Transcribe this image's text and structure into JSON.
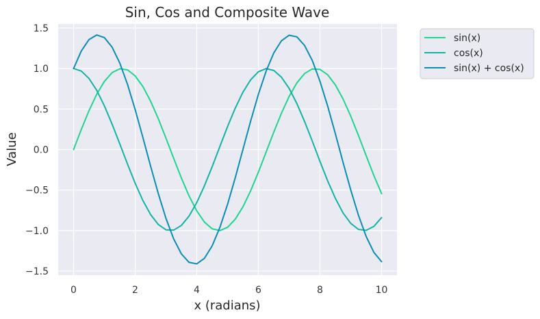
{
  "chart_data": {
    "type": "line",
    "title": "Sin, Cos and Composite Wave",
    "xlabel": "x (radians)",
    "ylabel": "Value",
    "xlim": [
      -0.5,
      10.5
    ],
    "ylim": [
      -1.55,
      1.55
    ],
    "xticks": [
      0,
      2,
      4,
      6,
      8,
      10
    ],
    "yticks": [
      1.5,
      1.0,
      0.5,
      0.0,
      -0.5,
      -1.0,
      -1.5
    ],
    "xtick_labels": [
      "0",
      "2",
      "4",
      "6",
      "8",
      "10"
    ],
    "ytick_labels": [
      "1.5",
      "1.0",
      "0.5",
      "0.0",
      "−0.5",
      "−1.0",
      "−1.5"
    ],
    "grid": true,
    "legend_position": "outside-top-right",
    "x": [
      0.0,
      0.25,
      0.5,
      0.75,
      1.0,
      1.25,
      1.5,
      1.75,
      2.0,
      2.25,
      2.5,
      2.75,
      3.0,
      3.25,
      3.5,
      3.75,
      4.0,
      4.25,
      4.5,
      4.75,
      5.0,
      5.25,
      5.5,
      5.75,
      6.0,
      6.25,
      6.5,
      6.75,
      7.0,
      7.25,
      7.5,
      7.75,
      8.0,
      8.25,
      8.5,
      8.75,
      9.0,
      9.25,
      9.5,
      9.75,
      10.0
    ],
    "series": [
      {
        "name": "sin(x)",
        "color": "#1fd48f",
        "values": [
          0.0,
          0.247,
          0.479,
          0.682,
          0.841,
          0.949,
          0.997,
          0.984,
          0.909,
          0.778,
          0.598,
          0.382,
          0.141,
          -0.108,
          -0.351,
          -0.572,
          -0.757,
          -0.895,
          -0.978,
          -0.999,
          -0.959,
          -0.859,
          -0.706,
          -0.508,
          -0.279,
          -0.033,
          0.215,
          0.45,
          0.657,
          0.823,
          0.938,
          0.995,
          0.989,
          0.923,
          0.798,
          0.624,
          0.412,
          0.174,
          -0.075,
          -0.32,
          -0.544
        ]
      },
      {
        "name": "cos(x)",
        "color": "#12b3a3",
        "values": [
          1.0,
          0.969,
          0.878,
          0.732,
          0.54,
          0.315,
          0.071,
          -0.178,
          -0.416,
          -0.628,
          -0.801,
          -0.924,
          -0.99,
          -0.994,
          -0.936,
          -0.82,
          -0.654,
          -0.446,
          -0.211,
          0.038,
          0.284,
          0.512,
          0.709,
          0.861,
          0.96,
          0.999,
          0.977,
          0.893,
          0.754,
          0.568,
          0.347,
          0.105,
          -0.146,
          -0.386,
          -0.602,
          -0.782,
          -0.911,
          -0.985,
          -0.997,
          -0.948,
          -0.839
        ]
      },
      {
        "name": "sin(x) + cos(x)",
        "color": "#0b8cb3",
        "values": [
          1.0,
          1.216,
          1.357,
          1.414,
          1.382,
          1.264,
          1.068,
          0.806,
          0.493,
          0.15,
          -0.203,
          -0.542,
          -0.849,
          -1.102,
          -1.287,
          -1.392,
          -1.41,
          -1.341,
          -1.188,
          -0.961,
          -0.675,
          -0.347,
          0.003,
          0.353,
          0.681,
          0.966,
          1.192,
          1.343,
          1.411,
          1.391,
          1.285,
          1.1,
          0.843,
          0.537,
          0.196,
          -0.158,
          -0.499,
          -0.811,
          -1.072,
          -1.268,
          -1.383
        ]
      }
    ]
  },
  "colors": {
    "plot_background": "#eaeaf2",
    "grid": "#ffffff",
    "legend_background": "#eaeaf2",
    "legend_border": "#cccccc"
  }
}
